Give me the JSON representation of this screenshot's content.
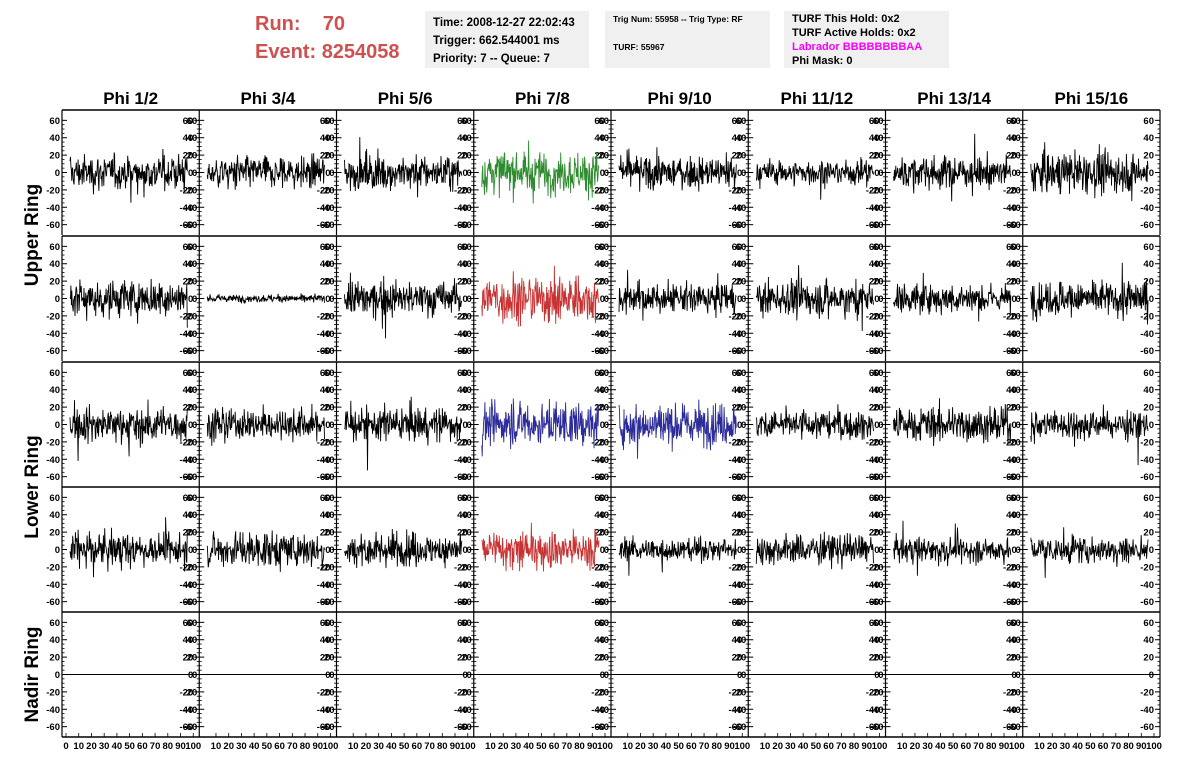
{
  "header": {
    "run_label": "Run:",
    "run_value": "70",
    "event_label": "Event:",
    "event_value": "8254058"
  },
  "info_time": {
    "time": "Time: 2008-12-27 22:02:43",
    "trigger": "Trigger: 662.544001 ms",
    "priority": "Priority: 7 -- Queue: 7"
  },
  "info_trig": {
    "trig": "Trig Num: 55958 -- Trig Type: RF",
    "turf": "TURF: 55967"
  },
  "info_turf": {
    "this_hold": "TURF This Hold: 0x2",
    "active_holds": "TURF Active Holds: 0x2",
    "labrador": "Labrador BBBBBBBBAA",
    "phi_mask": "Phi Mask: 0"
  },
  "colors": {
    "trace": "#000000",
    "green": "#2e8b2e",
    "red": "#c83232",
    "blue": "#2b2b9a",
    "header": "#d05050",
    "magenta": "#ff00ff",
    "info_bg": "#f0f0f0"
  },
  "chart_data": {
    "type": "line",
    "columns": [
      "Phi 1/2",
      "Phi 3/4",
      "Phi 5/6",
      "Phi 7/8",
      "Phi 9/10",
      "Phi 11/12",
      "Phi 13/14",
      "Phi 15/16"
    ],
    "rows": [
      "Upper Ring",
      "Upper Ring",
      "Lower Ring",
      "Lower Ring",
      "Nadir Ring"
    ],
    "ring_labels": [
      "Upper Ring",
      "Lower Ring",
      "Nadir Ring"
    ],
    "y_ticks": [
      -60,
      -40,
      -20,
      0,
      20,
      40,
      60
    ],
    "x_ticks": [
      0,
      10,
      20,
      30,
      40,
      50,
      60,
      70,
      80,
      90,
      100
    ],
    "xlim": [
      0,
      100
    ],
    "ylim": [
      -65,
      65
    ],
    "panel_amplitudes": [
      [
        14,
        13,
        14,
        17,
        13,
        10,
        13,
        16
      ],
      [
        15,
        3,
        14,
        20,
        12,
        14,
        12,
        14
      ],
      [
        14,
        13,
        14,
        17,
        17,
        12,
        14,
        12
      ],
      [
        13,
        14,
        13,
        16,
        9,
        12,
        10,
        11
      ],
      [
        0,
        0,
        0,
        0,
        0,
        0,
        0,
        0
      ]
    ],
    "highlighted": [
      {
        "row": 0,
        "col": 3,
        "color": "green"
      },
      {
        "row": 1,
        "col": 3,
        "color": "red"
      },
      {
        "row": 2,
        "col": 3,
        "color": "blue"
      },
      {
        "row": 2,
        "col": 4,
        "color": "blue"
      },
      {
        "row": 3,
        "col": 3,
        "color": "red"
      }
    ]
  }
}
